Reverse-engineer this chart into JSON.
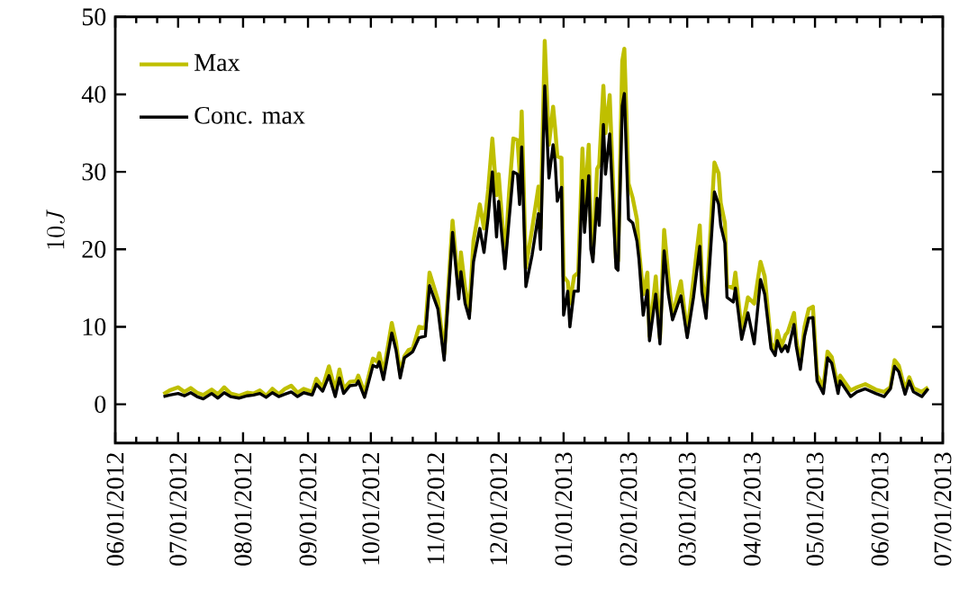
{
  "chart_data": {
    "type": "line",
    "ylabel": "10J",
    "x": [
      "2012-06-24",
      "2012-06-27",
      "2012-07-01",
      "2012-07-04",
      "2012-07-07",
      "2012-07-10",
      "2012-07-13",
      "2012-07-17",
      "2012-07-20",
      "2012-07-23",
      "2012-07-26",
      "2012-07-30",
      "2012-08-03",
      "2012-08-06",
      "2012-08-09",
      "2012-08-12",
      "2012-08-15",
      "2012-08-18",
      "2012-08-21",
      "2012-08-24",
      "2012-08-27",
      "2012-08-30",
      "2012-09-03",
      "2012-09-05",
      "2012-09-08",
      "2012-09-11",
      "2012-09-14",
      "2012-09-16",
      "2012-09-18",
      "2012-09-21",
      "2012-09-24",
      "2012-09-25",
      "2012-09-28",
      "2012-10-02",
      "2012-10-04",
      "2012-10-05",
      "2012-10-07",
      "2012-10-11",
      "2012-10-13",
      "2012-10-15",
      "2012-10-17",
      "2012-10-19",
      "2012-10-21",
      "2012-10-24",
      "2012-10-27",
      "2012-10-29",
      "2012-11-02",
      "2012-11-05",
      "2012-11-09",
      "2012-11-12",
      "2012-11-13",
      "2012-11-15",
      "2012-11-17",
      "2012-11-19",
      "2012-11-22",
      "2012-11-24",
      "2012-11-26",
      "2012-11-28",
      "2012-11-30",
      "2012-12-01",
      "2012-12-04",
      "2012-12-06",
      "2012-12-08",
      "2012-12-10",
      "2012-12-11",
      "2012-12-12",
      "2012-12-14",
      "2012-12-17",
      "2012-12-20",
      "2012-12-21",
      "2012-12-23",
      "2012-12-25",
      "2012-12-27",
      "2012-12-28",
      "2012-12-29",
      "2012-12-31",
      "2013-01-01",
      "2013-01-03",
      "2013-01-04",
      "2013-01-06",
      "2013-01-08",
      "2013-01-10",
      "2013-01-11",
      "2013-01-13",
      "2013-01-14",
      "2013-01-15",
      "2013-01-17",
      "2013-01-18",
      "2013-01-20",
      "2013-01-21",
      "2013-01-23",
      "2013-01-26",
      "2013-01-27",
      "2013-01-29",
      "2013-01-30",
      "2013-02-01",
      "2013-02-03",
      "2013-02-05",
      "2013-02-06",
      "2013-02-08",
      "2013-02-10",
      "2013-02-11",
      "2013-02-14",
      "2013-02-16",
      "2013-02-18",
      "2013-02-20",
      "2013-02-22",
      "2013-02-26",
      "2013-03-01",
      "2013-03-04",
      "2013-03-07",
      "2013-03-08",
      "2013-03-10",
      "2013-03-14",
      "2013-03-16",
      "2013-03-17",
      "2013-03-19",
      "2013-03-20",
      "2013-03-23",
      "2013-03-24",
      "2013-03-27",
      "2013-03-30",
      "2013-04-02",
      "2013-04-05",
      "2013-04-07",
      "2013-04-10",
      "2013-04-12",
      "2013-04-13",
      "2013-04-15",
      "2013-04-17",
      "2013-04-18",
      "2013-04-21",
      "2013-04-22",
      "2013-04-24",
      "2013-04-26",
      "2013-04-28",
      "2013-04-30",
      "2013-05-02",
      "2013-05-05",
      "2013-05-07",
      "2013-05-09",
      "2013-05-12",
      "2013-05-13",
      "2013-05-18",
      "2013-05-21",
      "2013-05-25",
      "2013-05-30",
      "2013-06-03",
      "2013-06-06",
      "2013-06-08",
      "2013-06-10",
      "2013-06-13",
      "2013-06-15",
      "2013-06-17",
      "2013-06-21",
      "2013-06-24"
    ],
    "series": [
      {
        "name": "Max",
        "color": "#bfbf00",
        "values": [
          1.3,
          1.8,
          2.2,
          1.6,
          2.1,
          1.5,
          1.2,
          1.9,
          1.3,
          2.2,
          1.4,
          1.1,
          1.5,
          1.4,
          1.8,
          1.1,
          2.0,
          1.3,
          2.0,
          2.4,
          1.5,
          2.0,
          1.6,
          3.3,
          2.2,
          4.9,
          1.8,
          4.5,
          2.0,
          2.9,
          3.0,
          3.7,
          1.5,
          5.9,
          5.5,
          6.6,
          4.0,
          10.5,
          8.0,
          4.0,
          6.2,
          7.0,
          7.2,
          10.0,
          9.8,
          17.0,
          13.5,
          6.5,
          23.7,
          14.5,
          19.6,
          15.0,
          12.0,
          21.1,
          25.8,
          22.7,
          27.7,
          34.3,
          27.0,
          29.7,
          18.8,
          27.4,
          34.3,
          34.1,
          30.0,
          37.8,
          17.6,
          22.7,
          28.1,
          22.7,
          46.9,
          33.5,
          38.4,
          35.5,
          32.0,
          31.8,
          16.5,
          15.8,
          13.0,
          16.5,
          17.0,
          33.0,
          25.4,
          33.5,
          22.7,
          19.4,
          30.4,
          30.9,
          41.1,
          35.0,
          39.9,
          18.8,
          18.5,
          44.3,
          45.9,
          28.5,
          26.6,
          23.9,
          20.0,
          14.2,
          17.0,
          8.8,
          16.5,
          8.5,
          22.5,
          16.5,
          11.4,
          15.9,
          9.2,
          16.1,
          23.1,
          16.5,
          12.3,
          31.2,
          29.8,
          26.0,
          23.4,
          15.3,
          15.0,
          17.0,
          9.5,
          13.8,
          13.0,
          18.4,
          16.5,
          7.9,
          7.0,
          9.5,
          7.5,
          9.0,
          9.3,
          11.8,
          8.5,
          5.2,
          10.0,
          12.3,
          12.6,
          3.8,
          2.2,
          6.8,
          6.1,
          2.2,
          3.7,
          1.8,
          2.2,
          2.6,
          1.9,
          1.6,
          2.2,
          5.7,
          5.0,
          1.9,
          3.5,
          2.1,
          1.6,
          2.2
        ]
      },
      {
        "name": "Conc. max",
        "color": "#000000",
        "values": [
          1.0,
          1.2,
          1.4,
          1.1,
          1.5,
          1.0,
          0.7,
          1.4,
          0.8,
          1.5,
          1.0,
          0.8,
          1.1,
          1.2,
          1.4,
          0.9,
          1.5,
          1.0,
          1.3,
          1.6,
          1.0,
          1.5,
          1.2,
          2.6,
          1.7,
          3.7,
          1.0,
          3.4,
          1.4,
          2.4,
          2.5,
          3.0,
          0.9,
          5.0,
          4.8,
          5.5,
          3.2,
          9.2,
          7.0,
          3.4,
          6.0,
          6.4,
          6.8,
          8.6,
          8.8,
          15.3,
          12.3,
          5.7,
          22.2,
          13.6,
          17.1,
          13.0,
          11.1,
          18.4,
          22.7,
          19.6,
          24.2,
          30.0,
          21.6,
          26.2,
          17.5,
          23.9,
          30.0,
          29.7,
          25.8,
          33.2,
          15.2,
          19.3,
          24.6,
          20.0,
          41.1,
          29.2,
          33.5,
          31.2,
          26.2,
          28.0,
          11.5,
          14.6,
          10.0,
          14.6,
          14.6,
          28.9,
          22.2,
          29.5,
          20.0,
          18.4,
          26.6,
          23.1,
          36.1,
          29.7,
          34.9,
          17.6,
          17.3,
          38.5,
          40.1,
          23.9,
          23.4,
          21.1,
          18.7,
          11.5,
          14.7,
          8.2,
          14.2,
          7.8,
          19.8,
          14.2,
          10.9,
          14.0,
          8.6,
          13.8,
          20.4,
          14.5,
          11.1,
          27.4,
          25.8,
          23.1,
          20.8,
          13.8,
          13.2,
          15.0,
          8.4,
          11.8,
          7.8,
          16.1,
          14.2,
          7.2,
          6.3,
          8.2,
          6.8,
          7.6,
          6.8,
          10.3,
          7.6,
          4.5,
          8.8,
          11.1,
          11.2,
          3.0,
          1.4,
          6.0,
          5.3,
          1.4,
          3.0,
          1.0,
          1.6,
          2.0,
          1.4,
          1.0,
          2.0,
          4.9,
          4.2,
          1.3,
          3.0,
          1.6,
          1.0,
          2.0
        ]
      }
    ],
    "xlim": [
      "2012-06-01",
      "2013-07-01"
    ],
    "xticks": [
      {
        "value": "2012-06-01",
        "label": "06/01/2012"
      },
      {
        "value": "2012-07-01",
        "label": "07/01/2012"
      },
      {
        "value": "2012-08-01",
        "label": "08/01/2012"
      },
      {
        "value": "2012-09-01",
        "label": "09/01/2012"
      },
      {
        "value": "2012-10-01",
        "label": "10/01/2012"
      },
      {
        "value": "2012-11-01",
        "label": "11/01/2012"
      },
      {
        "value": "2012-12-01",
        "label": "12/01/2012"
      },
      {
        "value": "2013-01-01",
        "label": "01/01/2013"
      },
      {
        "value": "2013-02-01",
        "label": "02/01/2013"
      },
      {
        "value": "2013-03-01",
        "label": "03/01/2013"
      },
      {
        "value": "2013-04-01",
        "label": "04/01/2013"
      },
      {
        "value": "2013-05-01",
        "label": "05/01/2013"
      },
      {
        "value": "2013-06-01",
        "label": "06/01/2013"
      },
      {
        "value": "2013-07-01",
        "label": "07/01/2013"
      },
      {
        "value": "2012-06-11",
        "label": null
      },
      {
        "value": "2012-06-21",
        "label": null
      },
      {
        "value": "2012-07-11",
        "label": null
      },
      {
        "value": "2012-07-21",
        "label": null
      },
      {
        "value": "2012-08-11",
        "label": null
      },
      {
        "value": "2012-08-21",
        "label": null
      },
      {
        "value": "2012-09-11",
        "label": null
      },
      {
        "value": "2012-09-21",
        "label": null
      },
      {
        "value": "2012-10-11",
        "label": null
      },
      {
        "value": "2012-10-21",
        "label": null
      },
      {
        "value": "2012-11-11",
        "label": null
      },
      {
        "value": "2012-11-21",
        "label": null
      },
      {
        "value": "2012-12-11",
        "label": null
      },
      {
        "value": "2012-12-21",
        "label": null
      },
      {
        "value": "2013-01-11",
        "label": null
      },
      {
        "value": "2013-01-21",
        "label": null
      },
      {
        "value": "2013-02-11",
        "label": null
      },
      {
        "value": "2013-02-21",
        "label": null
      },
      {
        "value": "2013-03-11",
        "label": null
      },
      {
        "value": "2013-03-21",
        "label": null
      },
      {
        "value": "2013-04-11",
        "label": null
      },
      {
        "value": "2013-04-21",
        "label": null
      },
      {
        "value": "2013-05-11",
        "label": null
      },
      {
        "value": "2013-05-21",
        "label": null
      },
      {
        "value": "2013-06-11",
        "label": null
      },
      {
        "value": "2013-06-21",
        "label": null
      }
    ],
    "ylim": [
      -5,
      50
    ],
    "yticks": [
      0,
      10,
      20,
      30,
      40,
      50
    ],
    "grid": false,
    "legend": "top left",
    "marker": "none",
    "line_style": "solid"
  }
}
